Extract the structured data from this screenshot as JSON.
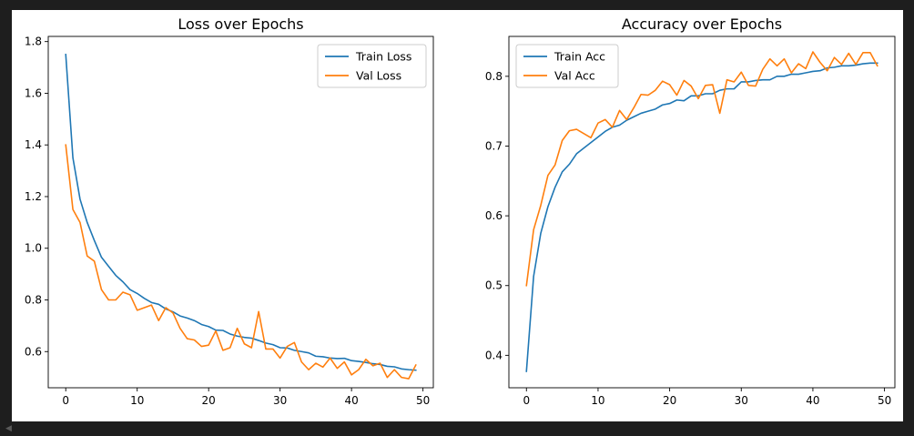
{
  "chart_data": [
    {
      "type": "line",
      "title": "Loss over Epochs",
      "xlabel": "",
      "ylabel": "",
      "xlim": [
        -2.45,
        51.45
      ],
      "ylim": [
        0.46,
        1.82
      ],
      "xticks": [
        0,
        10,
        20,
        30,
        40,
        50
      ],
      "yticks": [
        0.6,
        0.8,
        1.0,
        1.2,
        1.4,
        1.6,
        1.8
      ],
      "ytick_labels": [
        "0.6",
        "0.8",
        "1.0",
        "1.2",
        "1.4",
        "1.6",
        "1.8"
      ],
      "grid": false,
      "legend_position": "top-right",
      "x": [
        0,
        1,
        2,
        3,
        4,
        5,
        6,
        7,
        8,
        9,
        10,
        11,
        12,
        13,
        14,
        15,
        16,
        17,
        18,
        19,
        20,
        21,
        22,
        23,
        24,
        25,
        26,
        27,
        28,
        29,
        30,
        31,
        32,
        33,
        34,
        35,
        36,
        37,
        38,
        39,
        40,
        41,
        42,
        43,
        44,
        45,
        46,
        47,
        48,
        49
      ],
      "series": [
        {
          "name": "Train Loss",
          "color": "#1f77b4",
          "values": [
            1.75,
            1.35,
            1.19,
            1.1,
            1.03,
            0.965,
            0.93,
            0.895,
            0.87,
            0.84,
            0.825,
            0.806,
            0.79,
            0.783,
            0.765,
            0.754,
            0.738,
            0.73,
            0.72,
            0.705,
            0.697,
            0.683,
            0.682,
            0.668,
            0.66,
            0.655,
            0.652,
            0.643,
            0.633,
            0.627,
            0.615,
            0.614,
            0.605,
            0.6,
            0.595,
            0.582,
            0.58,
            0.575,
            0.573,
            0.574,
            0.565,
            0.562,
            0.558,
            0.553,
            0.55,
            0.543,
            0.541,
            0.533,
            0.53,
            0.528
          ]
        },
        {
          "name": "Val Loss",
          "color": "#ff7f0e",
          "values": [
            1.4,
            1.15,
            1.1,
            0.97,
            0.95,
            0.84,
            0.8,
            0.8,
            0.83,
            0.82,
            0.76,
            0.77,
            0.78,
            0.72,
            0.77,
            0.75,
            0.69,
            0.65,
            0.645,
            0.62,
            0.625,
            0.68,
            0.605,
            0.615,
            0.69,
            0.63,
            0.615,
            0.755,
            0.61,
            0.61,
            0.575,
            0.62,
            0.635,
            0.56,
            0.53,
            0.555,
            0.54,
            0.575,
            0.535,
            0.56,
            0.51,
            0.53,
            0.57,
            0.545,
            0.555,
            0.5,
            0.53,
            0.5,
            0.495,
            0.548
          ]
        }
      ]
    },
    {
      "type": "line",
      "title": "Accuracy over Epochs",
      "xlabel": "",
      "ylabel": "",
      "xlim": [
        -2.45,
        51.45
      ],
      "ylim": [
        0.3535,
        0.8572
      ],
      "xticks": [
        0,
        10,
        20,
        30,
        40,
        50
      ],
      "yticks": [
        0.4,
        0.5,
        0.6,
        0.7,
        0.8
      ],
      "ytick_labels": [
        "0.4",
        "0.5",
        "0.6",
        "0.7",
        "0.8"
      ],
      "grid": false,
      "legend_position": "top-left",
      "x": [
        0,
        1,
        2,
        3,
        4,
        5,
        6,
        7,
        8,
        9,
        10,
        11,
        12,
        13,
        14,
        15,
        16,
        17,
        18,
        19,
        20,
        21,
        22,
        23,
        24,
        25,
        26,
        27,
        28,
        29,
        30,
        31,
        32,
        33,
        34,
        35,
        36,
        37,
        38,
        39,
        40,
        41,
        42,
        43,
        44,
        45,
        46,
        47,
        48,
        49
      ],
      "series": [
        {
          "name": "Train Acc",
          "color": "#1f77b4",
          "values": [
            0.377,
            0.513,
            0.575,
            0.613,
            0.641,
            0.663,
            0.674,
            0.689,
            0.697,
            0.705,
            0.713,
            0.721,
            0.727,
            0.73,
            0.737,
            0.742,
            0.747,
            0.75,
            0.753,
            0.759,
            0.761,
            0.766,
            0.765,
            0.772,
            0.772,
            0.775,
            0.775,
            0.78,
            0.782,
            0.782,
            0.792,
            0.792,
            0.794,
            0.795,
            0.795,
            0.8,
            0.8,
            0.803,
            0.803,
            0.805,
            0.807,
            0.808,
            0.812,
            0.813,
            0.815,
            0.815,
            0.816,
            0.818,
            0.819,
            0.819
          ]
        },
        {
          "name": "Val Acc",
          "color": "#ff7f0e",
          "values": [
            0.5,
            0.58,
            0.615,
            0.658,
            0.673,
            0.708,
            0.722,
            0.724,
            0.718,
            0.712,
            0.733,
            0.738,
            0.727,
            0.751,
            0.738,
            0.755,
            0.774,
            0.773,
            0.78,
            0.793,
            0.788,
            0.773,
            0.794,
            0.786,
            0.768,
            0.787,
            0.788,
            0.747,
            0.795,
            0.792,
            0.806,
            0.787,
            0.786,
            0.81,
            0.825,
            0.815,
            0.825,
            0.805,
            0.818,
            0.811,
            0.835,
            0.82,
            0.808,
            0.827,
            0.817,
            0.833,
            0.817,
            0.834,
            0.834,
            0.815
          ]
        }
      ]
    }
  ]
}
